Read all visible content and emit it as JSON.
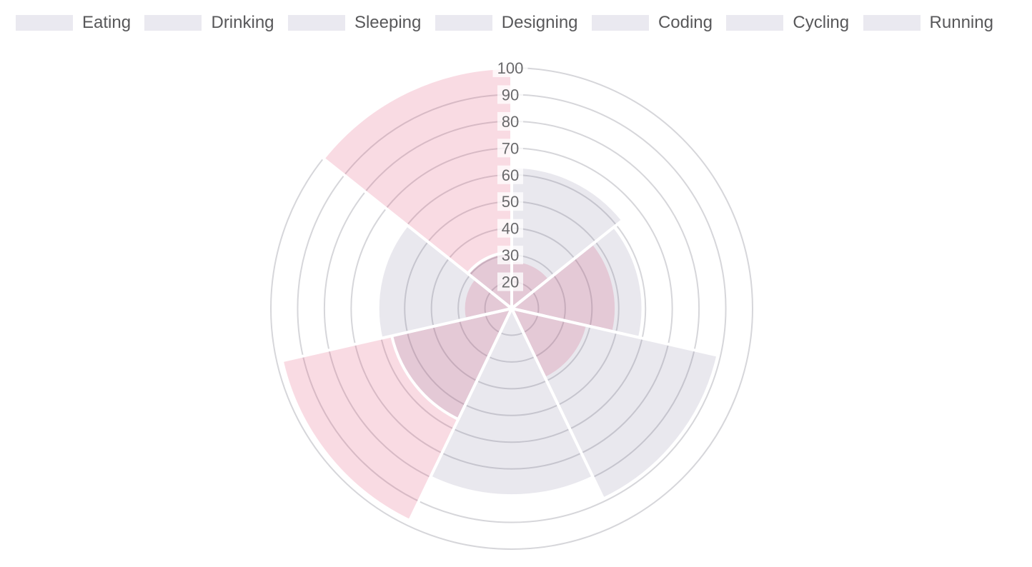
{
  "legend": {
    "swatch_color": "#EAE9F0",
    "items": [
      {
        "label": "Eating"
      },
      {
        "label": "Drinking"
      },
      {
        "label": "Sleeping"
      },
      {
        "label": "Designing"
      },
      {
        "label": "Coding"
      },
      {
        "label": "Cycling"
      },
      {
        "label": "Running"
      }
    ]
  },
  "chart_data": {
    "type": "polar-area",
    "categories": [
      "Eating",
      "Drinking",
      "Sleeping",
      "Designing",
      "Coding",
      "Cycling",
      "Running"
    ],
    "series": [
      {
        "name": "gray-dataset",
        "fill": "rgba(108,101,141,0.15)",
        "flat_color": "#E9E8EE",
        "values": [
          63,
          59,
          89,
          80,
          56,
          60,
          31
        ]
      },
      {
        "name": "pink-dataset",
        "fill": "rgba(225,75,115,0.20)",
        "flat_color": "#F9DBE3",
        "values": [
          28,
          49,
          39,
          12,
          98,
          28,
          100
        ]
      }
    ],
    "scale": {
      "min": 10,
      "max": 100,
      "step": 10,
      "tick_labels": [
        "20",
        "30",
        "40",
        "50",
        "60",
        "70",
        "80",
        "90",
        "100"
      ]
    },
    "layout_hints": {
      "start_angle_deg": 0,
      "direction": "clockwise",
      "grid": "concentric-circles",
      "legend_position": "top",
      "segment_border_color": "#FFFFFF",
      "overlap_blend_color": "#EFD2DC"
    }
  },
  "colors": {
    "background": "#FFFFFF",
    "grid_ring": "#D6D6DA",
    "tick_text": "#69696B",
    "tick_backdrop": "rgba(255,255,255,0.75)",
    "legend_text": "#58585A",
    "pink_flat": "#F9DBE3",
    "gray_flat": "#E9E8EE"
  }
}
